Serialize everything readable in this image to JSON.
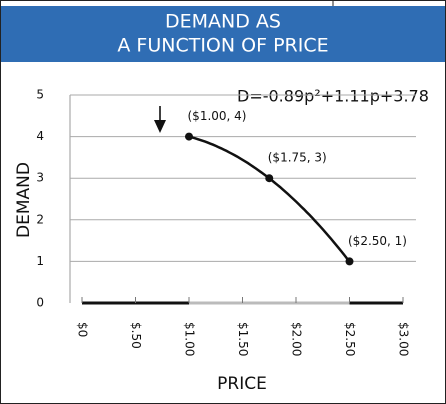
{
  "chart_data": {
    "type": "scatter",
    "title_lines": [
      "DEMAND AS",
      "A FUNCTION OF PRICE"
    ],
    "x_label": "PRICE",
    "y_label": "DEMAND",
    "equation": "D=-0.89p²+1.11p+3.78",
    "curve": {
      "coefficients": [
        -0.89,
        1.11,
        3.78
      ],
      "domain": [
        1,
        2.5
      ]
    },
    "x": [
      1,
      1.75,
      2.5
    ],
    "values": [
      4,
      3,
      1
    ],
    "value_labels": [
      "($1.00, 4)",
      "($1.75, 3)",
      "($2.50, 1)"
    ],
    "color": "#111111",
    "xlim": [
      0,
      3
    ],
    "xticks": [
      {
        "value": 0,
        "label": "$0"
      },
      {
        "value": 0.5,
        "label": "$.50"
      },
      {
        "value": 1,
        "label": "$1.00"
      },
      {
        "value": 1.5,
        "label": "$1.50"
      },
      {
        "value": 2,
        "label": "$2.00"
      },
      {
        "value": 2.5,
        "label": "$2.50"
      },
      {
        "value": 3,
        "label": "$3.00"
      }
    ],
    "ylim": [
      0,
      5
    ],
    "yticks": [
      0,
      1,
      2,
      3,
      4,
      5
    ],
    "grid": true
  }
}
